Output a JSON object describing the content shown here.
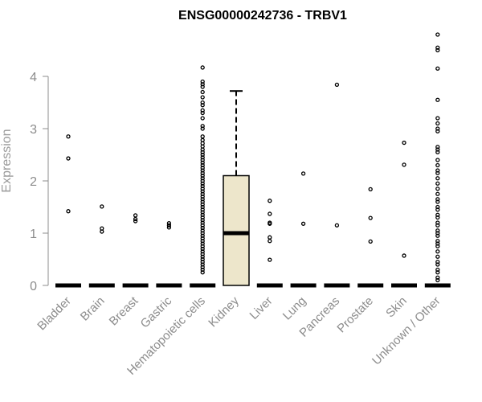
{
  "chart_data": {
    "type": "boxplot",
    "title": "ENSG00000242736 - TRBV1",
    "xlabel": "",
    "ylabel": "Expression",
    "ylim": [
      0,
      4.9
    ],
    "yticks": [
      0,
      1,
      2,
      3,
      4
    ],
    "grid": false,
    "legend": "none",
    "box_fill": "#ede6cb",
    "categories": [
      "Bladder",
      "Brain",
      "Breast",
      "Gastric",
      "Hematopoietic cells",
      "Kidney",
      "Liver",
      "Lung",
      "Pancreas",
      "Prostate",
      "Skin",
      "Unknown / Other"
    ],
    "boxes": [
      {
        "category": "Bladder",
        "min": 0,
        "q1": 0,
        "median": 0,
        "q3": 0,
        "max": 0,
        "outliers": [
          2.85,
          2.43,
          1.42
        ]
      },
      {
        "category": "Brain",
        "min": 0,
        "q1": 0,
        "median": 0,
        "q3": 0,
        "max": 0,
        "outliers": [
          1.51,
          1.09,
          1.03
        ]
      },
      {
        "category": "Breast",
        "min": 0,
        "q1": 0,
        "median": 0,
        "q3": 0,
        "max": 0,
        "outliers": [
          1.34,
          1.27,
          1.23
        ]
      },
      {
        "category": "Gastric",
        "min": 0,
        "q1": 0,
        "median": 0,
        "q3": 0,
        "max": 0,
        "outliers": [
          1.19,
          1.15,
          1.11
        ]
      },
      {
        "category": "Hematopoietic cells",
        "min": 0,
        "q1": 0,
        "median": 0,
        "q3": 0,
        "max": 0,
        "outliers": [
          4.17,
          3.9,
          3.85,
          3.8,
          3.7,
          3.6,
          3.5,
          3.45,
          3.35,
          3.3,
          3.2,
          3.05,
          3.0,
          2.85,
          2.78,
          2.72,
          2.66,
          2.6,
          2.55,
          2.5,
          2.45,
          2.4,
          2.35,
          2.3,
          2.25,
          2.2,
          2.15,
          2.1,
          2.05,
          2.0,
          1.95,
          1.9,
          1.85,
          1.8,
          1.75,
          1.7,
          1.65,
          1.6,
          1.55,
          1.5,
          1.45,
          1.4,
          1.35,
          1.3,
          1.25,
          1.2,
          1.15,
          1.1,
          1.05,
          1.0,
          0.95,
          0.9,
          0.85,
          0.8,
          0.75,
          0.7,
          0.65,
          0.6,
          0.55,
          0.5,
          0.45,
          0.4,
          0.35,
          0.3,
          0.25
        ]
      },
      {
        "category": "Kidney",
        "min": 0,
        "q1": 0,
        "median": 1.0,
        "q3": 2.1,
        "max": 3.72,
        "outliers": []
      },
      {
        "category": "Liver",
        "min": 0,
        "q1": 0,
        "median": 0,
        "q3": 0,
        "max": 0,
        "outliers": [
          1.62,
          1.37,
          1.2,
          1.18,
          0.92,
          0.85,
          0.49
        ]
      },
      {
        "category": "Lung",
        "min": 0,
        "q1": 0,
        "median": 0,
        "q3": 0,
        "max": 0,
        "outliers": [
          2.14,
          1.18
        ]
      },
      {
        "category": "Pancreas",
        "min": 0,
        "q1": 0,
        "median": 0,
        "q3": 0,
        "max": 0,
        "outliers": [
          3.84,
          1.15
        ]
      },
      {
        "category": "Prostate",
        "min": 0,
        "q1": 0,
        "median": 0,
        "q3": 0,
        "max": 0,
        "outliers": [
          1.84,
          1.29,
          0.84
        ]
      },
      {
        "category": "Skin",
        "min": 0,
        "q1": 0,
        "median": 0,
        "q3": 0,
        "max": 0,
        "outliers": [
          2.73,
          2.31,
          0.57
        ]
      },
      {
        "category": "Unknown / Other",
        "min": 0,
        "q1": 0,
        "median": 0,
        "q3": 0,
        "max": 0,
        "outliers": [
          4.8,
          4.55,
          4.5,
          4.15,
          3.55,
          3.2,
          3.1,
          3.0,
          2.95,
          2.65,
          2.6,
          2.55,
          2.4,
          2.3,
          2.2,
          2.15,
          2.05,
          1.95,
          1.85,
          1.75,
          1.65,
          1.6,
          1.5,
          1.45,
          1.35,
          1.3,
          1.2,
          1.15,
          1.05,
          1.0,
          0.95,
          0.85,
          0.8,
          0.75,
          0.65,
          0.55,
          0.45,
          0.4,
          0.3,
          0.25,
          0.15,
          0.1
        ]
      }
    ]
  }
}
